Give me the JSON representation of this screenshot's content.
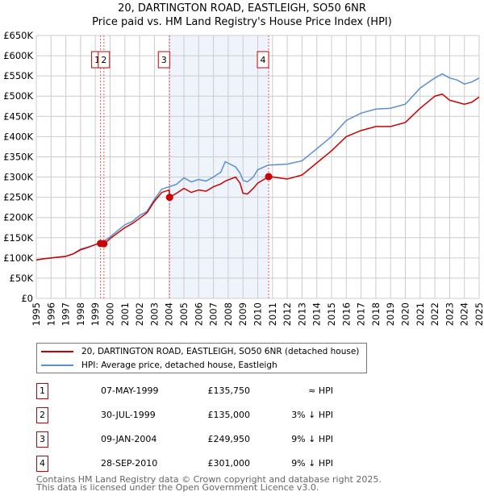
{
  "title_line1": "20, DARTINGTON ROAD, EASTLEIGH, SO50 6NR",
  "title_line2": "Price paid vs. HM Land Registry's House Price Index (HPI)",
  "chart_data": {
    "type": "line",
    "title": "Price paid vs. HM Land Registry's House Price Index (HPI)",
    "xlim": [
      1995,
      2025
    ],
    "ylim": [
      0,
      650000
    ],
    "y_ticks": [
      0,
      50000,
      100000,
      150000,
      200000,
      250000,
      300000,
      350000,
      400000,
      450000,
      500000,
      550000,
      600000,
      650000
    ],
    "y_tick_labels": [
      "£0",
      "£50K",
      "£100K",
      "£150K",
      "£200K",
      "£250K",
      "£300K",
      "£350K",
      "£400K",
      "£450K",
      "£500K",
      "£550K",
      "£600K",
      "£650K"
    ],
    "x_ticks": [
      1995,
      1996,
      1997,
      1998,
      1999,
      2000,
      2001,
      2002,
      2003,
      2004,
      2005,
      2006,
      2007,
      2008,
      2009,
      2010,
      2011,
      2012,
      2013,
      2014,
      2015,
      2016,
      2017,
      2018,
      2019,
      2020,
      2021,
      2022,
      2023,
      2024,
      2025
    ],
    "grid": true,
    "shaded_range": [
      2004.03,
      2010.74
    ],
    "series": [
      {
        "name": "20, DARTINGTON ROAD, EASTLEIGH, SO50 6NR (detached house)",
        "color": "#cc0000",
        "x": [
          1995,
          1995.5,
          1996,
          1997,
          1997.5,
          1998,
          1998.5,
          1999,
          1999.35,
          1999.6,
          2000,
          2001,
          2001.5,
          2002,
          2002.5,
          2003,
          2003.5,
          2004,
          2004.03,
          2004.5,
          2005,
          2005.5,
          2006,
          2006.5,
          2007,
          2007.5,
          2007.8,
          2008.5,
          2008.8,
          2009,
          2009.3,
          2009.7,
          2010,
          2010.74,
          2011,
          2012,
          2013,
          2014,
          2015,
          2016,
          2017,
          2018,
          2019,
          2020,
          2021,
          2022,
          2022.5,
          2023,
          2023.5,
          2024,
          2024.5,
          2025
        ],
        "y": [
          95000,
          98000,
          100000,
          104000,
          110000,
          120000,
          126000,
          133000,
          135750,
          135000,
          148000,
          175000,
          185000,
          198000,
          212000,
          240000,
          262000,
          268000,
          249950,
          260000,
          272000,
          262000,
          268000,
          265000,
          276000,
          283000,
          290000,
          300000,
          285000,
          260000,
          258000,
          272000,
          285000,
          301000,
          300000,
          295000,
          305000,
          335000,
          365000,
          400000,
          415000,
          425000,
          425000,
          435000,
          470000,
          500000,
          505000,
          490000,
          485000,
          480000,
          485000,
          498000
        ]
      },
      {
        "name": "HPI: Average price, detached house, Eastleigh",
        "color": "#5b8fd4",
        "x": [
          1995,
          1995.5,
          1996,
          1997,
          1997.5,
          1998,
          1998.5,
          1999,
          1999.5,
          2000,
          2001,
          2001.5,
          2002,
          2002.5,
          2003,
          2003.5,
          2004,
          2004.5,
          2005,
          2005.5,
          2006,
          2006.5,
          2007,
          2007.5,
          2007.8,
          2008.5,
          2008.8,
          2009,
          2009.3,
          2009.7,
          2010,
          2010.74,
          2011,
          2012,
          2013,
          2014,
          2015,
          2016,
          2017,
          2018,
          2019,
          2020,
          2021,
          2022,
          2022.5,
          2023,
          2023.5,
          2024,
          2024.5,
          2025
        ],
        "y": [
          95000,
          98000,
          100000,
          104000,
          110000,
          122000,
          127000,
          133000,
          139000,
          152000,
          182000,
          190000,
          205000,
          215000,
          245000,
          270000,
          276000,
          282000,
          298000,
          288000,
          294000,
          290000,
          300000,
          312000,
          338000,
          325000,
          310000,
          292000,
          288000,
          300000,
          318000,
          330000,
          330000,
          332000,
          340000,
          370000,
          400000,
          440000,
          458000,
          468000,
          470000,
          480000,
          520000,
          545000,
          555000,
          545000,
          540000,
          530000,
          535000,
          545000
        ]
      }
    ],
    "annotations": [
      {
        "label": "1",
        "x": 1999.35,
        "y": 135750
      },
      {
        "label": "2",
        "x": 1999.58,
        "y": 135000
      },
      {
        "label": "3",
        "x": 2004.03,
        "y": 249950
      },
      {
        "label": "4",
        "x": 2010.74,
        "y": 301000
      }
    ]
  },
  "legend": {
    "series1": "20, DARTINGTON ROAD, EASTLEIGH, SO50 6NR (detached house)",
    "series2": "HPI: Average price, detached house, Eastleigh"
  },
  "transactions": [
    {
      "num": "1",
      "date": "07-MAY-1999",
      "price": "£135,750",
      "hpi": "≈ HPI"
    },
    {
      "num": "2",
      "date": "30-JUL-1999",
      "price": "£135,000",
      "hpi": "3% ↓ HPI"
    },
    {
      "num": "3",
      "date": "09-JAN-2004",
      "price": "£249,950",
      "hpi": "9% ↓ HPI"
    },
    {
      "num": "4",
      "date": "28-SEP-2010",
      "price": "£301,000",
      "hpi": "9% ↓ HPI"
    }
  ],
  "footer": {
    "line1": "Contains HM Land Registry data © Crown copyright and database right 2025.",
    "line2": "This data is licensed under the Open Government Licence v3.0."
  }
}
